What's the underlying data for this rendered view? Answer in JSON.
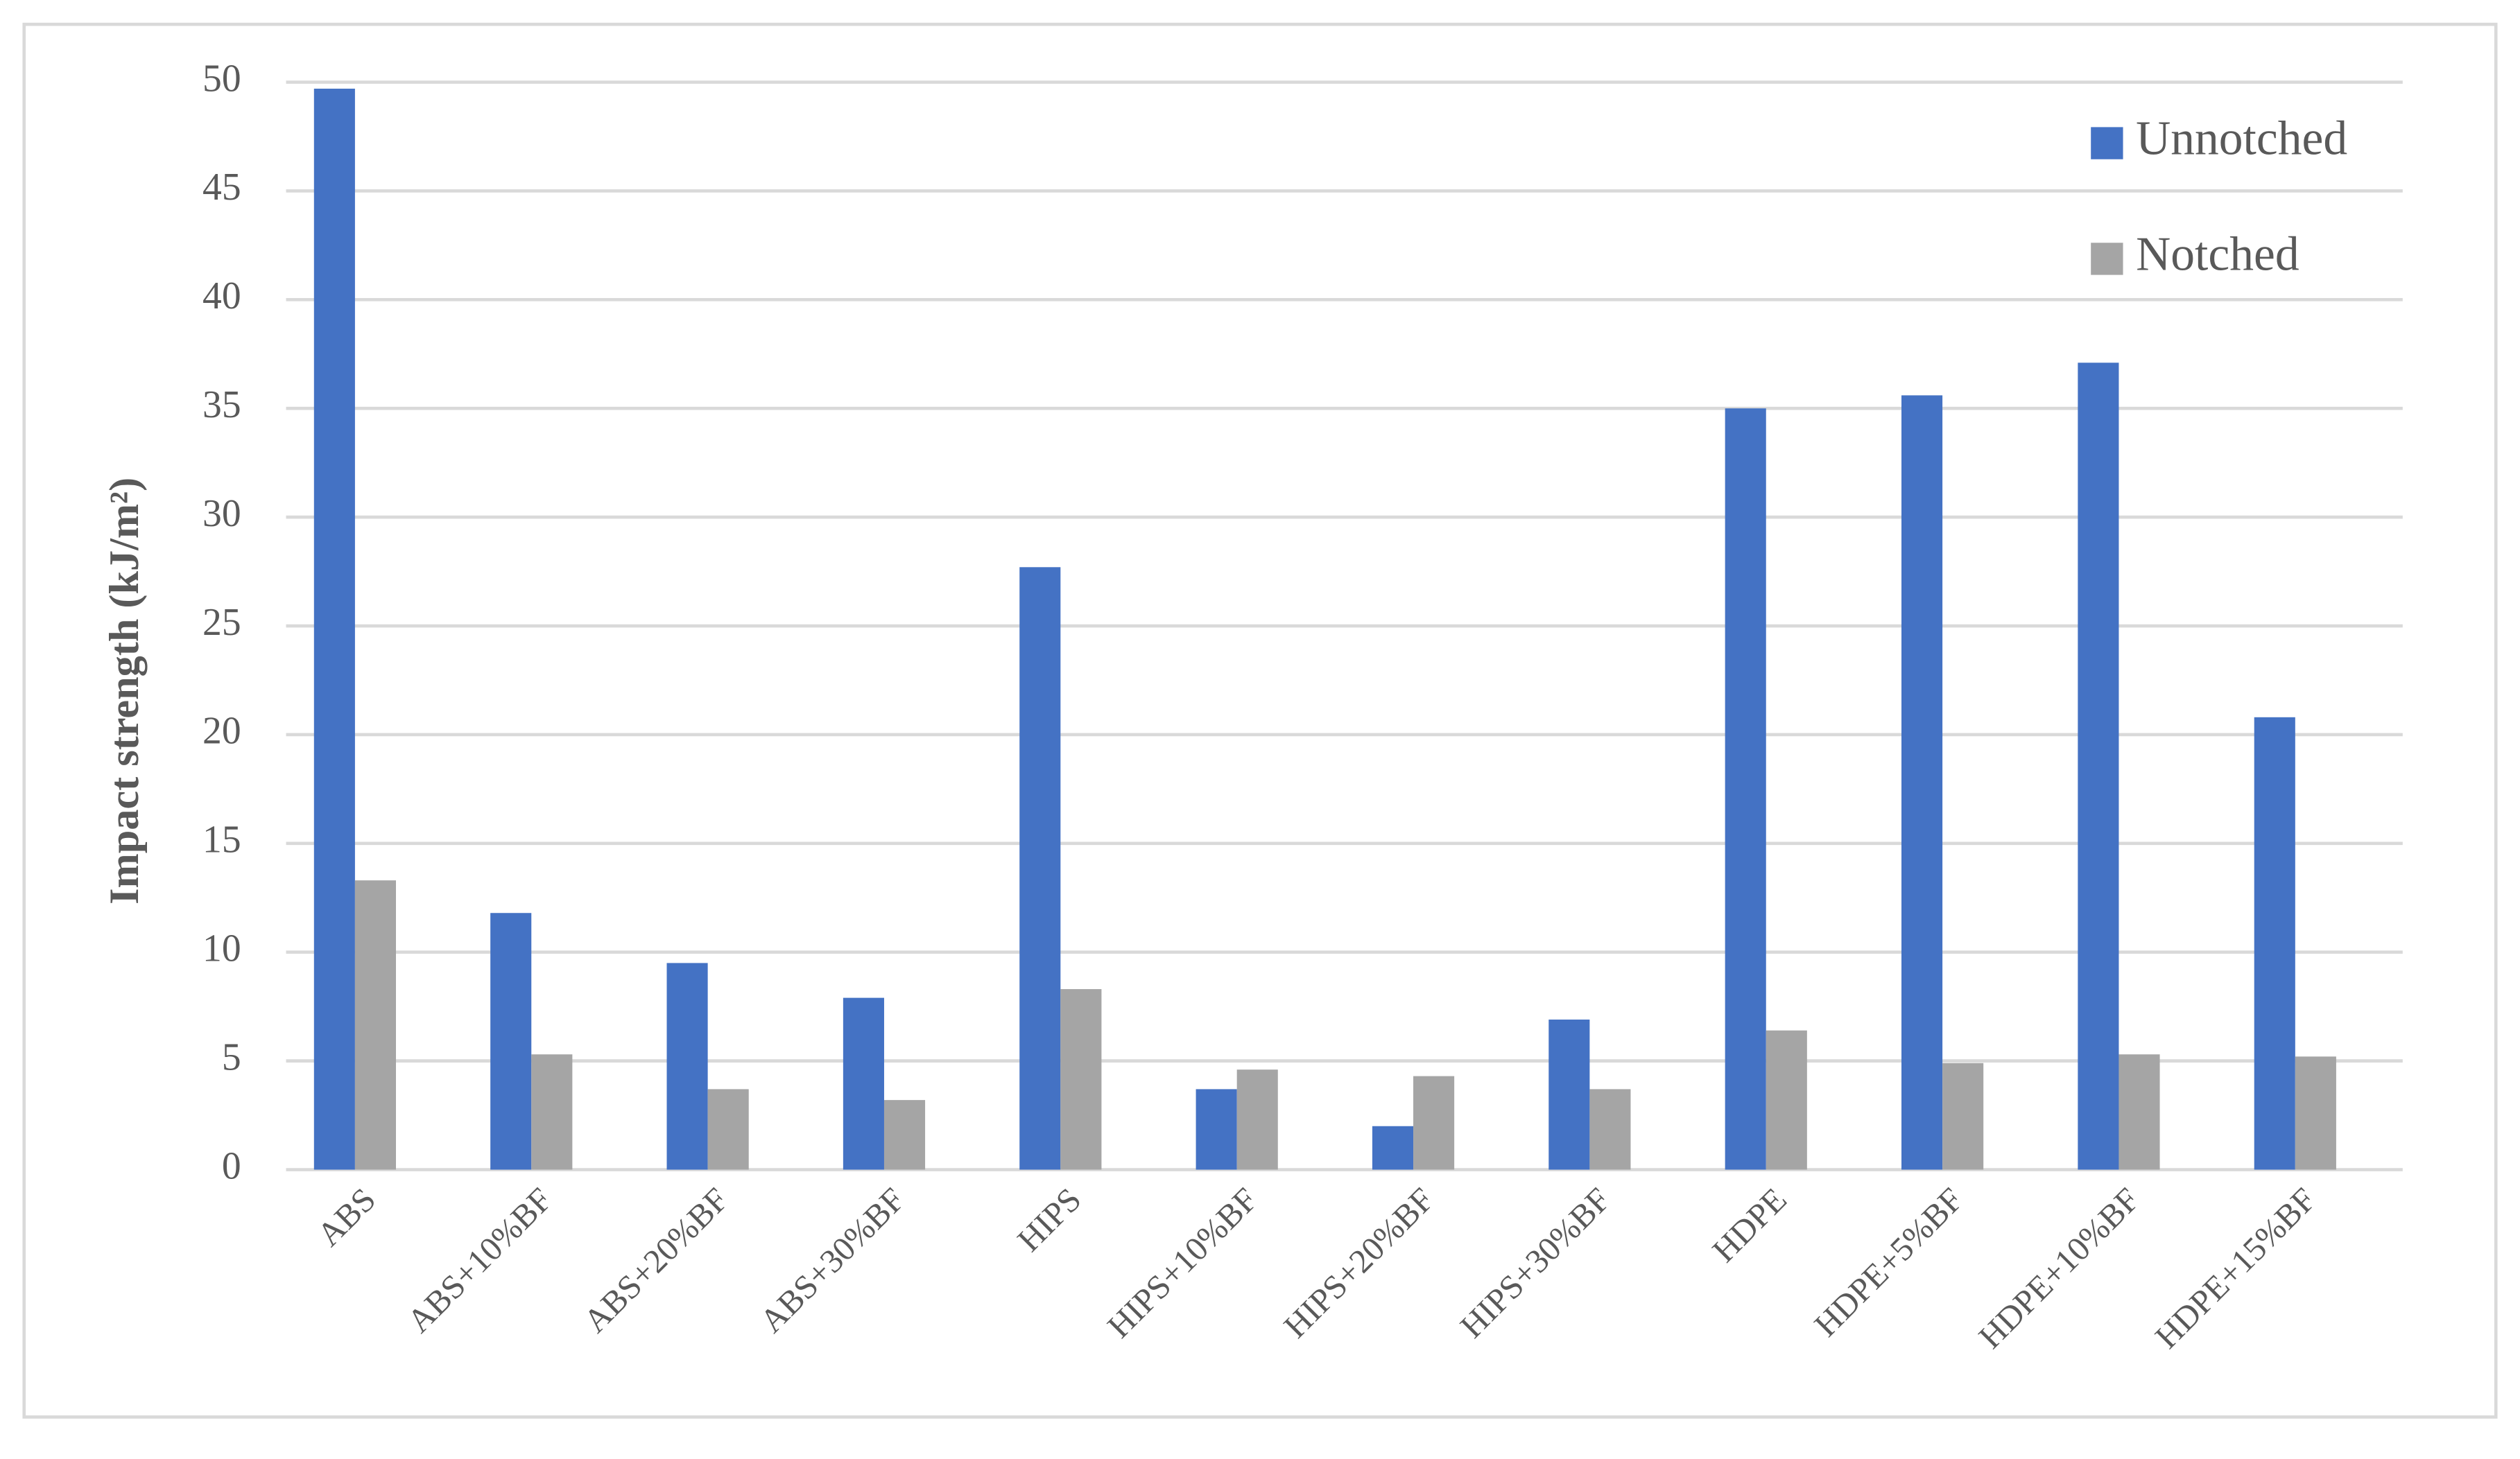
{
  "chart_data": {
    "type": "bar",
    "y_label": "Impact strength  (kJ/m²)",
    "categories": [
      "ABS",
      "ABS+10%BF",
      "ABS+20%BF",
      "ABS+30%BF",
      "HIPS",
      "HIPS+10%BF",
      "HIPS+20%BF",
      "HIPS+30%BF",
      "HDPE",
      "HDPE+5%BF",
      "HDPE+10%BF",
      "HDPE+15%BF"
    ],
    "series": [
      {
        "name": "Unnotched",
        "color": "#4472c4",
        "values": [
          49.7,
          11.8,
          9.5,
          7.9,
          27.7,
          3.7,
          2.0,
          6.9,
          35.0,
          35.6,
          37.1,
          20.8
        ]
      },
      {
        "name": "Notched",
        "color": "#a5a5a5",
        "values": [
          13.3,
          5.3,
          3.7,
          3.2,
          8.3,
          4.6,
          4.3,
          3.7,
          6.4,
          4.9,
          5.3,
          5.2
        ]
      }
    ],
    "ylim": [
      0,
      50
    ],
    "yticks": [
      0,
      5,
      10,
      15,
      20,
      25,
      30,
      35,
      40,
      45,
      50
    ],
    "grid": true,
    "legend": "top-right"
  }
}
